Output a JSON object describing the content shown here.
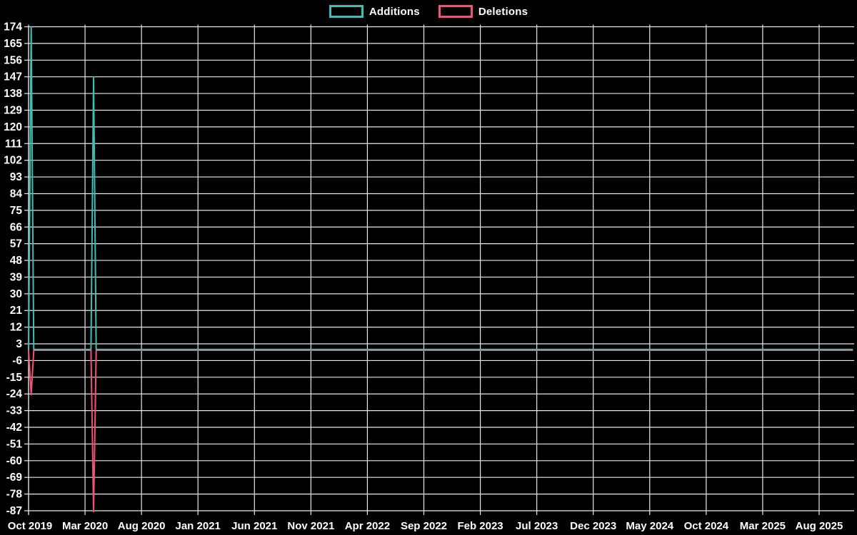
{
  "legend": {
    "items": [
      {
        "label": "Additions",
        "color": "#41bdb6"
      },
      {
        "label": "Deletions",
        "color": "#f2527a"
      }
    ]
  },
  "chart_data": {
    "type": "line",
    "title": "",
    "background": "#000000",
    "grid": true,
    "grid_color": "#e9e9e9",
    "text_color": "#ffffff",
    "legend_position": "top-center",
    "x_axis": {
      "unit": "week",
      "tick_labels": [
        "Oct 2019",
        "Mar 2020",
        "Aug 2020",
        "Jan 2021",
        "Jun 2021",
        "Nov 2021",
        "Apr 2022",
        "Sep 2022",
        "Feb 2023",
        "Jul 2023",
        "Dec 2023",
        "May 2024",
        "Oct 2024",
        "Mar 2025",
        "Aug 2025"
      ],
      "weeks_per_tick": 21.714,
      "total_weeks": 317
    },
    "y_axis": {
      "min": -87,
      "max": 174,
      "step": 9,
      "ticks": [
        174,
        165,
        156,
        147,
        138,
        129,
        120,
        111,
        102,
        93,
        84,
        75,
        66,
        57,
        48,
        39,
        30,
        21,
        12,
        3,
        -6,
        -15,
        -24,
        -33,
        -42,
        -51,
        -60,
        -69,
        -78,
        -87
      ]
    },
    "series": [
      {
        "name": "Additions",
        "color": "#41bdb6",
        "default_value": 0,
        "nonzero_points": [
          {
            "week": 1,
            "value": 174
          },
          {
            "week": 25,
            "value": 147
          }
        ]
      },
      {
        "name": "Deletions",
        "color": "#f2527a",
        "default_value": 0,
        "nonzero_points": [
          {
            "week": 1,
            "value": -24
          },
          {
            "week": 25,
            "value": -87
          }
        ]
      }
    ]
  }
}
